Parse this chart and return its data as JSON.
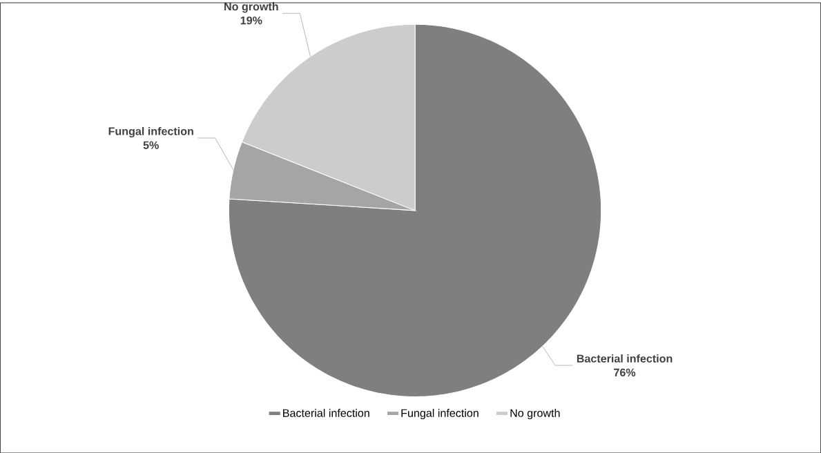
{
  "chart_data": {
    "type": "pie",
    "categories": [
      "Bacterial infection",
      "Fungal infection",
      "No growth"
    ],
    "values": [
      76,
      5,
      19
    ],
    "colors": [
      "#7f7f7f",
      "#a5a5a5",
      "#cccccc"
    ],
    "value_labels": [
      "76%",
      "5%",
      "19%"
    ],
    "legend": "bottom"
  }
}
